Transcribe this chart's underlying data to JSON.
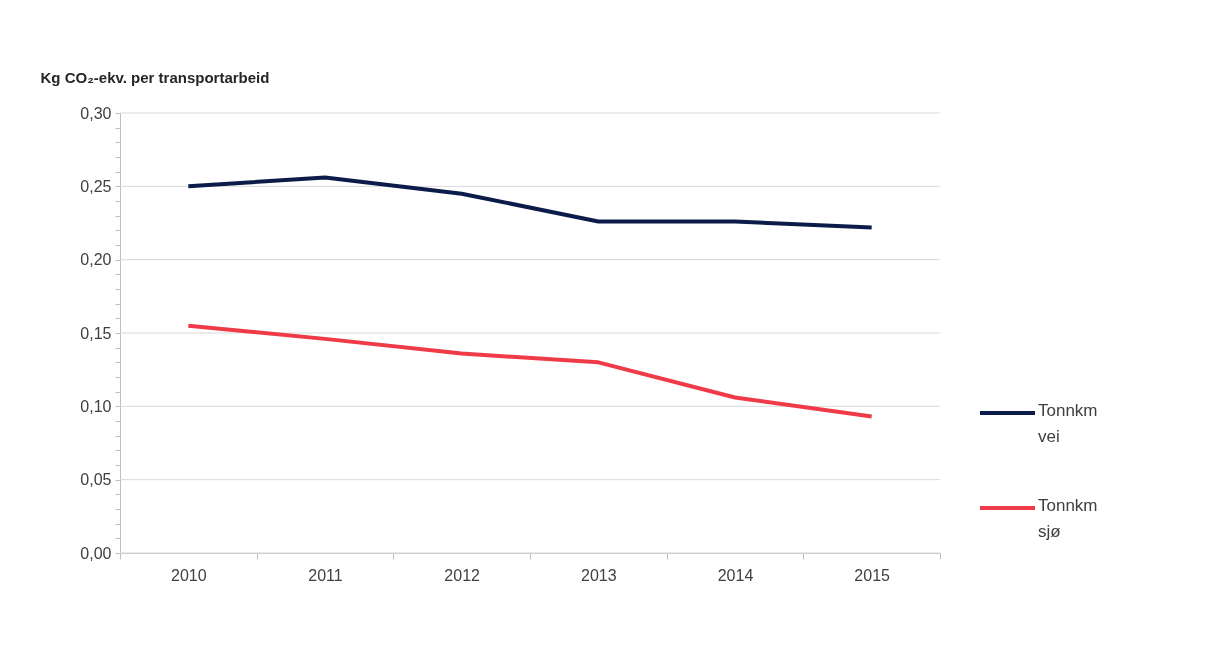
{
  "chart_data": {
    "type": "line",
    "ylabel": "Kg CO₂-ekv. per transportarbeid",
    "categories": [
      "2010",
      "2011",
      "2012",
      "2013",
      "2014",
      "2015"
    ],
    "series": [
      {
        "name": "Tonnkm vei",
        "color": "#0c1c4a",
        "values": [
          0.25,
          0.256,
          0.245,
          0.226,
          0.226,
          0.222
        ]
      },
      {
        "name": "Tonnkm sjø",
        "color": "#ef3a47",
        "values": [
          0.155,
          0.146,
          0.136,
          0.13,
          0.106,
          0.093
        ]
      }
    ],
    "ylim": [
      0,
      0.3
    ],
    "yticks": [
      {
        "value": 0,
        "label": "0,00"
      },
      {
        "value": 0.01,
        "label": null
      },
      {
        "value": 0.02,
        "label": null
      },
      {
        "value": 0.03,
        "label": null
      },
      {
        "value": 0.04,
        "label": null
      },
      {
        "value": 0.05,
        "label": "0,05"
      },
      {
        "value": 0.06,
        "label": null
      },
      {
        "value": 0.07,
        "label": null
      },
      {
        "value": 0.08,
        "label": null
      },
      {
        "value": 0.09,
        "label": null
      },
      {
        "value": 0.1,
        "label": "0,10"
      },
      {
        "value": 0.11,
        "label": null
      },
      {
        "value": 0.12,
        "label": null
      },
      {
        "value": 0.13,
        "label": null
      },
      {
        "value": 0.14,
        "label": null
      },
      {
        "value": 0.15,
        "label": "0,15"
      },
      {
        "value": 0.16,
        "label": null
      },
      {
        "value": 0.17,
        "label": null
      },
      {
        "value": 0.18,
        "label": null
      },
      {
        "value": 0.19,
        "label": null
      },
      {
        "value": 0.2,
        "label": "0,20"
      },
      {
        "value": 0.21,
        "label": null
      },
      {
        "value": 0.22,
        "label": null
      },
      {
        "value": 0.23,
        "label": null
      },
      {
        "value": 0.24,
        "label": null
      },
      {
        "value": 0.25,
        "label": "0,25"
      },
      {
        "value": 0.26,
        "label": null
      },
      {
        "value": 0.27,
        "label": null
      },
      {
        "value": 0.28,
        "label": null
      },
      {
        "value": 0.29,
        "label": null
      },
      {
        "value": 0.3,
        "label": "0,30"
      }
    ],
    "grid": "y",
    "legend": "right",
    "marker": "none",
    "line_style": "solid"
  }
}
